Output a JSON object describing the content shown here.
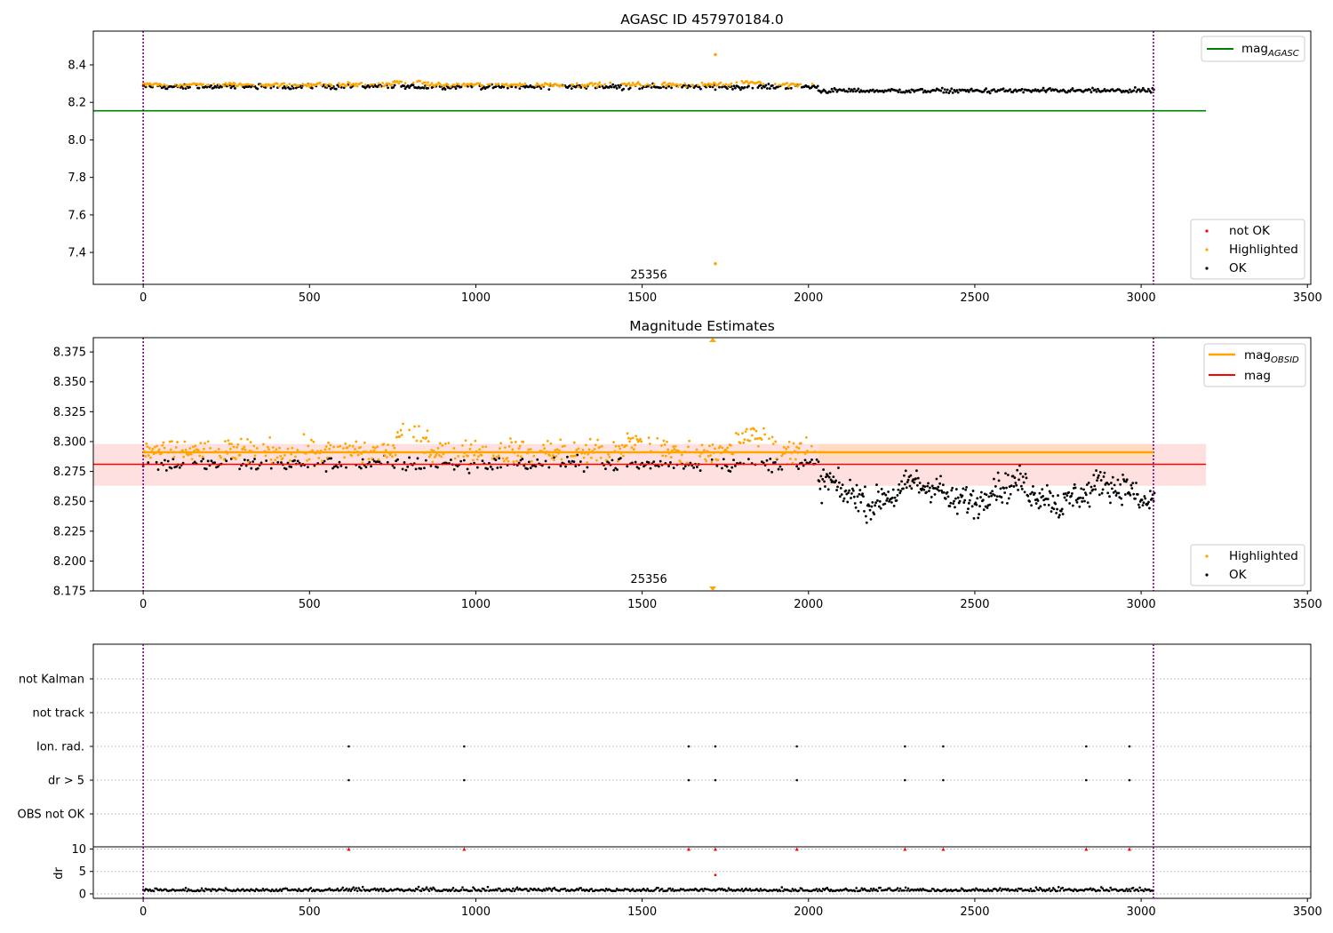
{
  "chart_data": [
    {
      "type": "scatter",
      "title": "AGASC ID 457970184.0",
      "xlim": [
        -150,
        3510
      ],
      "ylim": [
        7.23,
        8.58
      ],
      "xticks": [
        "0",
        "500",
        "1000",
        "1500",
        "2000",
        "2500",
        "3000",
        "3500"
      ],
      "xtick_values": [
        0,
        500,
        1000,
        1500,
        2000,
        2500,
        3000,
        3500
      ],
      "yticks": [
        "7.4",
        "7.6",
        "7.8",
        "8.0",
        "8.2",
        "8.4"
      ],
      "ytick_values": [
        7.4,
        7.6,
        7.8,
        8.0,
        8.2,
        8.4
      ],
      "vlines": [
        0,
        3037
      ],
      "hlines": [
        {
          "y": 8.155,
          "x0": -150,
          "x1": 3195,
          "color": "#008000"
        }
      ],
      "annotation": {
        "text": "25356",
        "x": 1520,
        "y": 7.27
      },
      "series": [
        {
          "name": "not OK",
          "color": "#ff0000",
          "points": []
        },
        {
          "name": "Highlighted",
          "color": "#ffa500",
          "level": 8.295,
          "range": [
            0,
            2030
          ],
          "outliers": [
            [
              1720,
              8.455
            ],
            [
              1720,
              7.34
            ]
          ]
        },
        {
          "name": "OK",
          "color": "#000000",
          "segments": [
            {
              "range": [
                0,
                2030
              ],
              "level": 8.283
            },
            {
              "range": [
                2030,
                3040
              ],
              "level": 8.262
            }
          ]
        }
      ],
      "legend_lines": [
        {
          "label": "mag",
          "sub": "AGASC",
          "color": "#008000"
        }
      ],
      "legend_points": [
        "not OK",
        "Highlighted",
        "OK"
      ]
    },
    {
      "type": "scatter",
      "title": "Magnitude Estimates",
      "xlim": [
        -150,
        3510
      ],
      "ylim": [
        8.175,
        8.387
      ],
      "xticks": [
        "0",
        "500",
        "1000",
        "1500",
        "2000",
        "2500",
        "3000",
        "3500"
      ],
      "xtick_values": [
        0,
        500,
        1000,
        1500,
        2000,
        2500,
        3000,
        3500
      ],
      "yticks": [
        "8.175",
        "8.200",
        "8.225",
        "8.250",
        "8.275",
        "8.300",
        "8.325",
        "8.350",
        "8.375"
      ],
      "ytick_values": [
        8.175,
        8.2,
        8.225,
        8.25,
        8.275,
        8.3,
        8.325,
        8.35,
        8.375
      ],
      "vlines": [
        0,
        3037
      ],
      "bands": [
        {
          "y0": 8.263,
          "y1": 8.298,
          "x0": -150,
          "x1": 3195,
          "color": "#ff9999"
        },
        {
          "y0": 8.283,
          "y1": 8.298,
          "x0": 2030,
          "x1": 3040,
          "color": "#ffcc88"
        }
      ],
      "hlines": [
        {
          "y": 8.281,
          "x0": -150,
          "x1": 3195,
          "color": "#ff0000"
        },
        {
          "y": 8.291,
          "x0": 0,
          "x1": 3037,
          "color": "#ffa500"
        }
      ],
      "annotation": {
        "text": "25356",
        "x": 1520,
        "y": 8.183
      },
      "series": [
        {
          "name": "Highlighted",
          "color": "#ffa500",
          "level": 8.292,
          "range": [
            0,
            2030
          ]
        },
        {
          "name": "OK",
          "color": "#000000",
          "segments": [
            {
              "range": [
                0,
                2030
              ],
              "level": 8.281
            },
            {
              "range": [
                2030,
                3040
              ],
              "level": 8.257
            }
          ]
        }
      ],
      "legend_lines": [
        {
          "label": "mag",
          "sub": "OBSID",
          "color": "#ffa500"
        },
        {
          "label": "mag",
          "sub": "",
          "color": "#ff0000"
        }
      ],
      "legend_points": [
        "Highlighted",
        "OK"
      ]
    },
    {
      "type": "scatter",
      "title": "",
      "xlim": [
        -150,
        3510
      ],
      "yticks": [
        "not Kalman",
        "not track",
        "Ion. rad.",
        "dr > 5",
        "OBS not OK"
      ],
      "vlines": [
        0,
        3037
      ],
      "flag_x": [
        618,
        965,
        1640,
        1720,
        1965,
        2290,
        2405,
        2835,
        2965
      ],
      "flag_rows": [
        "Ion. rad.",
        "dr > 5"
      ]
    },
    {
      "type": "scatter",
      "title": "",
      "ylabel": "dr",
      "xlim": [
        -150,
        3510
      ],
      "ylim": [
        -1,
        10.5
      ],
      "xticks": [
        "0",
        "500",
        "1000",
        "1500",
        "2000",
        "2500",
        "3000",
        "3500"
      ],
      "xtick_values": [
        0,
        500,
        1000,
        1500,
        2000,
        2500,
        3000,
        3500
      ],
      "yticks": [
        "0",
        "5",
        "10"
      ],
      "ytick_values": [
        0,
        5,
        10
      ],
      "vlines": [
        0,
        3037
      ],
      "marker_y": 10,
      "dr_level": 0.6
    }
  ]
}
